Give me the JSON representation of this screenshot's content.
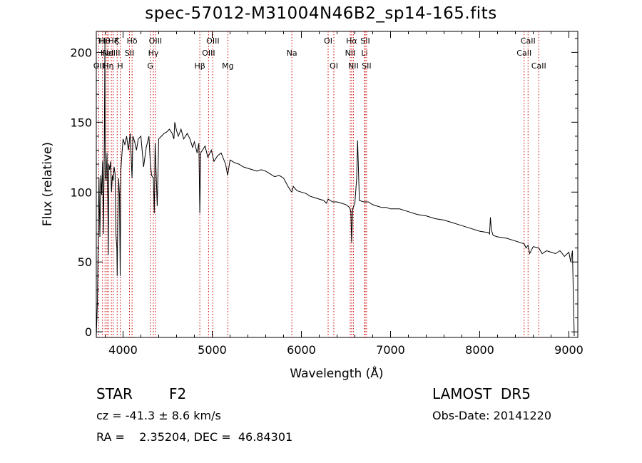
{
  "title": "spec-57012-M31004N46B2_sp14-165.fits",
  "info": {
    "class_label": "STAR",
    "subclass_label": "F2",
    "survey": "LAMOST  DR5",
    "cz_text": "cz = -41.3 ± 8.6 km/s",
    "obs_date_text": "Obs-Date: 20141220",
    "coords_text": "RA =    2.35204, DEC =  46.84301"
  },
  "chart_data": {
    "type": "line",
    "title": "spec-57012-M31004N46B2_sp14-165.fits",
    "xlabel": "Wavelength (Å)",
    "ylabel": "Flux (relative)",
    "xlim": [
      3700,
      9100
    ],
    "ylim": [
      -4,
      215
    ],
    "xticks": [
      4000,
      5000,
      6000,
      7000,
      8000,
      9000
    ],
    "yticks": [
      0,
      50,
      100,
      150,
      200
    ],
    "grid": false,
    "color": "#000000",
    "line_marker_color": "#cc0000",
    "series": [
      {
        "x": [
          3700,
          3712,
          3716,
          3722,
          3730,
          3740,
          3750,
          3760,
          3770,
          3780,
          3790,
          3797,
          3800,
          3810,
          3820,
          3830,
          3835,
          3840,
          3850,
          3860,
          3870,
          3880,
          3889,
          3900,
          3910,
          3920,
          3930,
          3934,
          3940,
          3950,
          3960,
          3968,
          3975,
          3985,
          4000,
          4020,
          4040,
          4060,
          4080,
          4101,
          4110,
          4130,
          4150,
          4170,
          4200,
          4230,
          4260,
          4290,
          4305,
          4320,
          4340,
          4350,
          4360,
          4383,
          4400,
          4430,
          4460,
          4490,
          4520,
          4550,
          4570,
          4580,
          4600,
          4620,
          4650,
          4680,
          4700,
          4720,
          4750,
          4780,
          4800,
          4830,
          4850,
          4861,
          4870,
          4890,
          4920,
          4950,
          4990,
          5020,
          5060,
          5100,
          5150,
          5173,
          5200,
          5250,
          5300,
          5350,
          5400,
          5450,
          5500,
          5550,
          5600,
          5650,
          5700,
          5750,
          5800,
          5850,
          5880,
          5893,
          5910,
          5950,
          6000,
          6050,
          6100,
          6150,
          6200,
          6250,
          6280,
          6300,
          6350,
          6400,
          6450,
          6500,
          6540,
          6555,
          6563,
          6575,
          6600,
          6620,
          6630,
          6650,
          6700,
          6750,
          6800,
          6850,
          6900,
          6950,
          7000,
          7100,
          7200,
          7300,
          7400,
          7500,
          7600,
          7700,
          7800,
          7900,
          8000,
          8100,
          8110,
          8120,
          8130,
          8150,
          8200,
          8300,
          8400,
          8498,
          8520,
          8542,
          8560,
          8600,
          8662,
          8700,
          8750,
          8800,
          8850,
          8900,
          8950,
          9000,
          9020,
          9040,
          9050,
          9060
        ],
        "y": [
          -3,
          20,
          40,
          75,
          110,
          68,
          112,
          98,
          122,
          70,
          138,
          210,
          112,
          108,
          128,
          90,
          55,
          120,
          116,
          122,
          100,
          112,
          108,
          118,
          113,
          70,
          60,
          40,
          75,
          110,
          98,
          40,
          115,
          125,
          138,
          134,
          140,
          130,
          142,
          110,
          140,
          136,
          130,
          138,
          140,
          118,
          132,
          140,
          122,
          112,
          110,
          85,
          135,
          90,
          138,
          140,
          142,
          143,
          145,
          142,
          138,
          150,
          144,
          140,
          145,
          138,
          140,
          142,
          138,
          132,
          136,
          128,
          135,
          85,
          128,
          130,
          133,
          125,
          130,
          122,
          126,
          128,
          120,
          112,
          123,
          121,
          120,
          118,
          117,
          116,
          115,
          116,
          115,
          113,
          111,
          112,
          110,
          104,
          101,
          100,
          104,
          101,
          100,
          99,
          97,
          96,
          95,
          94,
          92,
          95,
          93,
          93,
          92,
          91,
          89,
          86,
          64,
          88,
          92,
          110,
          137,
          94,
          93,
          93,
          91,
          90,
          89,
          89,
          88,
          88,
          86,
          84,
          83,
          81,
          80,
          78,
          76,
          74,
          72,
          71,
          70,
          82,
          73,
          69,
          68,
          67,
          65,
          63,
          60,
          62,
          56,
          61,
          60,
          56,
          58,
          57,
          56,
          58,
          54,
          57,
          50,
          58,
          25,
          -3
        ]
      }
    ],
    "line_markers": [
      {
        "wavelength": 3727,
        "label": "OII",
        "row": 2
      },
      {
        "wavelength": 3770,
        "label": "Hι",
        "row": 0
      },
      {
        "wavelength": 3798,
        "label": "Hθ",
        "row": 0
      },
      {
        "wavelength": 3820,
        "label": "HeI",
        "row": 1
      },
      {
        "wavelength": 3835,
        "label": "Hη",
        "row": 2
      },
      {
        "wavelength": 3869,
        "label": "NeIII",
        "row": 1
      },
      {
        "wavelength": 3889,
        "label": "Hζ",
        "row": 0
      },
      {
        "wavelength": 3934,
        "label": "K",
        "row": 0
      },
      {
        "wavelength": 3968,
        "label": "H",
        "row": 2
      },
      {
        "wavelength": 4072,
        "label": "SII",
        "row": 1
      },
      {
        "wavelength": 4101,
        "label": "Hδ",
        "row": 0
      },
      {
        "wavelength": 4305,
        "label": "G",
        "row": 2
      },
      {
        "wavelength": 4340,
        "label": "Hγ",
        "row": 1
      },
      {
        "wavelength": 4363,
        "label": "OIII",
        "row": 0
      },
      {
        "wavelength": 4861,
        "label": "Hβ",
        "row": 2
      },
      {
        "wavelength": 4959,
        "label": "OIII",
        "row": 1
      },
      {
        "wavelength": 5007,
        "label": "OIII",
        "row": 0
      },
      {
        "wavelength": 5175,
        "label": "Mg",
        "row": 2
      },
      {
        "wavelength": 5893,
        "label": "Na",
        "row": 1
      },
      {
        "wavelength": 6300,
        "label": "OI",
        "row": 0
      },
      {
        "wavelength": 6364,
        "label": "OI",
        "row": 2
      },
      {
        "wavelength": 6548,
        "label": "NII",
        "row": 1
      },
      {
        "wavelength": 6563,
        "label": "Hα",
        "row": 0
      },
      {
        "wavelength": 6583,
        "label": "NII",
        "row": 2
      },
      {
        "wavelength": 6708,
        "label": "Li",
        "row": 1
      },
      {
        "wavelength": 6716,
        "label": "SII",
        "row": 0
      },
      {
        "wavelength": 6731,
        "label": "SII",
        "row": 2
      },
      {
        "wavelength": 8498,
        "label": "CaII",
        "row": 1
      },
      {
        "wavelength": 8542,
        "label": "CaII",
        "row": 0
      },
      {
        "wavelength": 8662,
        "label": "CaII",
        "row": 2
      }
    ]
  }
}
